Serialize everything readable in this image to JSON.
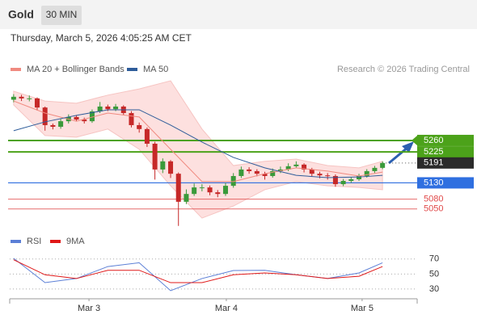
{
  "header": {
    "title": "Gold",
    "interval": "30 MIN",
    "timestamp": "Thursday, March 5, 2026 4:05:25 AM CET",
    "credit": "Research © 2026 Trading Central"
  },
  "chart_data": [
    {
      "type": "candlestick",
      "xlim": [
        -0.5,
        47.5
      ],
      "ylim": [
        4990,
        5505
      ],
      "up_color": "#3a9a3a",
      "down_color": "#c62828",
      "candles": {
        "open": [
          5385,
          5394,
          5389,
          5389,
          5361,
          5307,
          5302,
          5319,
          5332,
          5324,
          5319,
          5349,
          5364,
          5356,
          5364,
          5344,
          5307,
          5295,
          5250,
          5171,
          5196,
          5158,
          5072,
          5096,
          5116,
          5116,
          5101,
          5096,
          5121,
          5151,
          5171,
          5166,
          5158,
          5151,
          5166,
          5171,
          5181,
          5186,
          5171,
          5158,
          5153,
          5151,
          5126,
          5136,
          5141,
          5151,
          5166,
          5176
        ],
        "high": [
          5402,
          5400,
          5398,
          5392,
          5364,
          5312,
          5326,
          5340,
          5338,
          5330,
          5355,
          5378,
          5370,
          5372,
          5368,
          5350,
          5315,
          5300,
          5256,
          5205,
          5200,
          5162,
          5110,
          5128,
          5126,
          5122,
          5108,
          5130,
          5160,
          5180,
          5178,
          5172,
          5164,
          5174,
          5180,
          5190,
          5196,
          5190,
          5176,
          5164,
          5160,
          5156,
          5142,
          5148,
          5158,
          5172,
          5182,
          5196
        ],
        "low": [
          5377,
          5381,
          5380,
          5352,
          5290,
          5294,
          5296,
          5312,
          5318,
          5312,
          5314,
          5344,
          5350,
          5350,
          5338,
          5300,
          5284,
          5240,
          5140,
          5160,
          5145,
          4998,
          5065,
          5090,
          5104,
          5092,
          5086,
          5090,
          5115,
          5145,
          5158,
          5150,
          5140,
          5146,
          5160,
          5166,
          5176,
          5162,
          5150,
          5144,
          5140,
          5118,
          5120,
          5130,
          5136,
          5146,
          5160,
          5172
        ],
        "close": [
          5394,
          5389,
          5389,
          5361,
          5307,
          5302,
          5319,
          5332,
          5324,
          5319,
          5349,
          5364,
          5356,
          5364,
          5344,
          5307,
          5295,
          5250,
          5171,
          5196,
          5158,
          5072,
          5096,
          5116,
          5116,
          5101,
          5096,
          5121,
          5151,
          5171,
          5166,
          5158,
          5151,
          5166,
          5171,
          5181,
          5186,
          5171,
          5158,
          5153,
          5151,
          5126,
          5136,
          5141,
          5151,
          5166,
          5176,
          5191
        ]
      },
      "overlay_x": [
        0,
        4,
        8,
        12,
        16,
        20,
        24,
        28,
        32,
        36,
        40,
        44,
        47
      ],
      "series": [
        {
          "name": "MA 20 + Bollinger Bands",
          "color": "#f08a80",
          "values": [
            5381,
            5344,
            5319,
            5344,
            5332,
            5233,
            5134,
            5134,
            5158,
            5176,
            5166,
            5151,
            5163
          ]
        },
        {
          "name": "MA 50",
          "color": "#2e5c9a",
          "values": [
            5290,
            5317,
            5337,
            5354,
            5354,
            5307,
            5255,
            5208,
            5176,
            5153,
            5146,
            5148,
            5153
          ]
        }
      ],
      "bands": {
        "color": "#fde0df",
        "upper": [
          5411,
          5381,
          5374,
          5399,
          5418,
          5443,
          5295,
          5183,
          5196,
          5203,
          5183,
          5176,
          5196
        ],
        "lower": [
          5369,
          5275,
          5270,
          5295,
          5233,
          5121,
          5022,
          5059,
          5109,
          5134,
          5121,
          5116,
          5109
        ]
      },
      "levels": [
        {
          "value": 5260,
          "color": "#4ca21a",
          "style": "box"
        },
        {
          "value": 5225,
          "color": "#4ca21a",
          "style": "box"
        },
        {
          "value": 5191,
          "color": "#2b2b2b",
          "style": "current"
        },
        {
          "value": 5130,
          "color": "#2f6fe0",
          "style": "box"
        },
        {
          "value": 5080,
          "color": "#e04848",
          "style": "text"
        },
        {
          "value": 5050,
          "color": "#e04848",
          "style": "text"
        }
      ]
    },
    {
      "type": "line",
      "xlim": [
        -0.5,
        47.5
      ],
      "ylim": [
        17,
        87
      ],
      "x": [
        0,
        4,
        8,
        12,
        16,
        20,
        24,
        28,
        32,
        36,
        40,
        44,
        47
      ],
      "series": [
        {
          "name": "RSI",
          "color": "#5b7fd6",
          "values": [
            71,
            38.5,
            44,
            60,
            65,
            27.8,
            44,
            54.7,
            55,
            49,
            44,
            51.5,
            65
          ]
        },
        {
          "name": "9MA",
          "color": "#e01818",
          "values": [
            69,
            49,
            44,
            55,
            55,
            38.5,
            38.5,
            49,
            51.5,
            49,
            44,
            47,
            60
          ]
        }
      ],
      "yticks": [
        30,
        50,
        70
      ],
      "grid": true,
      "xticks": [
        {
          "value": 9.6,
          "label": "Mar 3"
        },
        {
          "value": 27.1,
          "label": "Mar 4"
        },
        {
          "value": 44.4,
          "label": "Mar 5"
        }
      ]
    }
  ]
}
